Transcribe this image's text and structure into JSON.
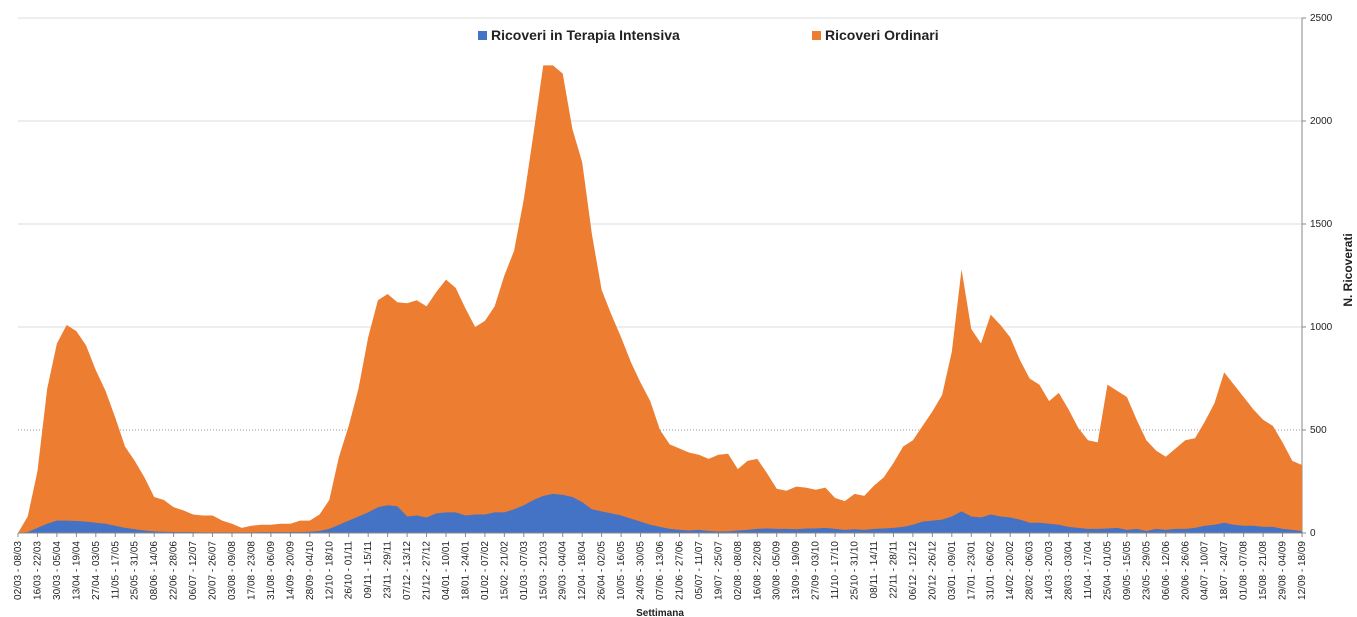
{
  "chart_data": {
    "type": "area",
    "x_label": "Settimana",
    "y_label": "N. Ricoverati",
    "legend": "top",
    "y_axis_side": "right",
    "grid": true,
    "ylim": [
      0,
      2500
    ],
    "yticks": [
      0,
      500,
      1000,
      1500,
      2000,
      2500
    ],
    "categories": [
      "02/03 - 08/03",
      null,
      "16/03 - 22/03",
      null,
      "30/03 - 05/04",
      null,
      "13/04 - 19/04",
      null,
      "27/04 - 03/05",
      null,
      "11/05 - 17/05",
      null,
      "25/05 - 31/05",
      null,
      "08/06 - 14/06",
      null,
      "22/06 - 28/06",
      null,
      "06/07 - 12/07",
      null,
      "20/07 - 26/07",
      null,
      "03/08 - 09/08",
      null,
      "17/08 - 23/08",
      null,
      "31/08 - 06/09",
      null,
      "14/09 - 20/09",
      null,
      "28/09 - 04/10",
      null,
      "12/10 - 18/10",
      null,
      "26/10 - 01/11",
      null,
      "09/11 - 15/11",
      null,
      "23/11 - 29/11",
      null,
      "07/12 - 13/12",
      null,
      "21/12 - 27/12",
      null,
      "04/01 - 10/01",
      null,
      "18/01 - 24/01",
      null,
      "01/02 - 07/02",
      null,
      "15/02 - 21/02",
      null,
      "01/03 - 07/03",
      null,
      "15/03 - 21/03",
      null,
      "29/03 - 04/04",
      null,
      "12/04 - 18/04",
      null,
      "26/04 - 02/05",
      null,
      "10/05 - 16/05",
      null,
      "24/05 - 30/05",
      null,
      "07/06 - 13/06",
      null,
      "21/06 - 27/06",
      null,
      "05/07 - 11/07",
      null,
      "19/07 - 25/07",
      null,
      "02/08 - 08/08",
      null,
      "16/08 - 22/08",
      null,
      "30/08 - 05/09",
      null,
      "13/09 - 19/09",
      null,
      "27/09 - 03/10",
      null,
      "11/10 - 17/10",
      null,
      "25/10 - 31/10",
      null,
      "08/11 - 14/11",
      null,
      "22/11 - 28/11",
      null,
      "06/12 - 12/12",
      null,
      "20/12 - 26/12",
      null,
      "03/01 - 09/01",
      null,
      "17/01 - 23/01",
      null,
      "31/01 - 06/02",
      null,
      "14/02 - 20/02",
      null,
      "28/02 - 06/03",
      null,
      "14/03 - 20/03",
      null,
      "28/03 - 03/04",
      null,
      "11/04 - 17/04",
      null,
      "25/04 - 01/05",
      null,
      "09/05 - 15/05",
      null,
      "23/05 - 29/05",
      null,
      "06/06 - 12/06",
      null,
      "20/06 - 26/06",
      null,
      "04/07 - 10/07",
      null,
      "18/07 - 24/07",
      null,
      "01/08 - 07/08",
      null,
      "15/08 - 21/08",
      null,
      "29/08 - 04/09",
      null,
      "12/09 - 18/09"
    ],
    "series": [
      {
        "name": "Ricoveri in Terapia Intensiva",
        "color": "#4472c4",
        "values": [
          0,
          5,
          25,
          45,
          60,
          60,
          58,
          55,
          50,
          45,
          35,
          25,
          18,
          12,
          8,
          6,
          5,
          5,
          4,
          3,
          3,
          3,
          3,
          3,
          3,
          4,
          4,
          4,
          4,
          5,
          6,
          10,
          20,
          40,
          60,
          80,
          100,
          125,
          135,
          130,
          80,
          85,
          75,
          95,
          100,
          100,
          85,
          90,
          90,
          100,
          100,
          115,
          135,
          160,
          180,
          190,
          185,
          175,
          150,
          115,
          105,
          95,
          85,
          70,
          55,
          40,
          30,
          20,
          15,
          12,
          15,
          10,
          7,
          8,
          12,
          15,
          20,
          22,
          20,
          20,
          18,
          22,
          22,
          25,
          20,
          15,
          18,
          15,
          20,
          22,
          25,
          30,
          40,
          55,
          60,
          65,
          80,
          105,
          80,
          75,
          90,
          80,
          75,
          65,
          50,
          50,
          45,
          40,
          30,
          25,
          20,
          20,
          22,
          25,
          15,
          20,
          10,
          20,
          15,
          20,
          20,
          25,
          35,
          40,
          50,
          40,
          35,
          35,
          30,
          30,
          20,
          15,
          10
        ]
      },
      {
        "name": "Ricoveri Ordinari",
        "color": "#ed7d31",
        "values": [
          0,
          80,
          300,
          700,
          920,
          1010,
          980,
          910,
          790,
          690,
          560,
          420,
          350,
          270,
          175,
          160,
          125,
          110,
          90,
          85,
          85,
          60,
          45,
          25,
          35,
          40,
          40,
          45,
          45,
          60,
          60,
          90,
          160,
          370,
          520,
          700,
          950,
          1130,
          1160,
          1120,
          1115,
          1130,
          1100,
          1170,
          1230,
          1190,
          1090,
          1000,
          1030,
          1100,
          1250,
          1370,
          1620,
          1940,
          2270,
          2270,
          2230,
          1960,
          1800,
          1450,
          1180,
          1060,
          950,
          830,
          730,
          640,
          500,
          430,
          410,
          390,
          380,
          360,
          380,
          385,
          310,
          350,
          360,
          290,
          215,
          205,
          225,
          220,
          210,
          220,
          170,
          155,
          190,
          180,
          230,
          270,
          340,
          420,
          450,
          520,
          590,
          670,
          880,
          1280,
          990,
          920,
          1060,
          1010,
          950,
          840,
          750,
          720,
          640,
          680,
          600,
          510,
          450,
          440,
          720,
          690,
          660,
          550,
          450,
          400,
          370,
          410,
          450,
          460,
          540,
          630,
          780,
          720,
          660,
          600,
          550,
          520,
          440,
          350,
          330
        ]
      }
    ]
  }
}
